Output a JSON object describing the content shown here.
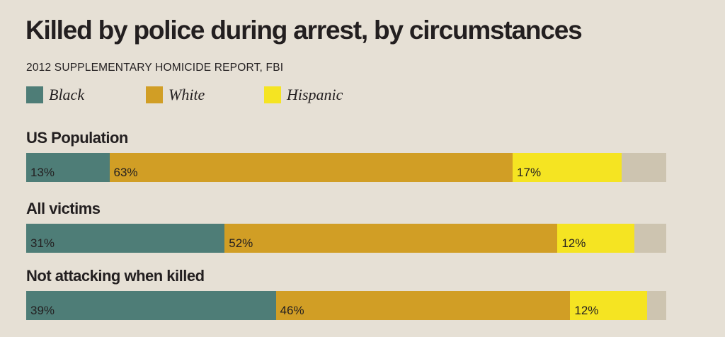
{
  "header": {
    "title": "Killed by police during arrest, by circumstances",
    "subtitle": "2012 SUPPLEMENTARY HOMICIDE REPORT, FBI"
  },
  "legend": [
    {
      "label": "Black",
      "color": "#4e7d77"
    },
    {
      "label": "White",
      "color": "#d19e25"
    },
    {
      "label": "Hispanic",
      "color": "#f5e422"
    }
  ],
  "colors": {
    "remainder": "#cdc4b0",
    "background": "#e6e0d5"
  },
  "chart_data": {
    "type": "bar",
    "stacked": true,
    "orientation": "horizontal",
    "categories": [
      "US Population",
      "All victims",
      "Not attacking when killed"
    ],
    "series": [
      {
        "name": "Black",
        "values": [
          13,
          31,
          39
        ],
        "labels": [
          "13%",
          "31%",
          "39%"
        ]
      },
      {
        "name": "White",
        "values": [
          63,
          52,
          46
        ],
        "labels": [
          "63%",
          "52%",
          "46%"
        ]
      },
      {
        "name": "Hispanic",
        "values": [
          17,
          12,
          12
        ],
        "labels": [
          "17%",
          "12%",
          "12%"
        ]
      }
    ],
    "xlim": [
      0,
      100
    ],
    "grid": false,
    "legend_position": "top-left"
  }
}
